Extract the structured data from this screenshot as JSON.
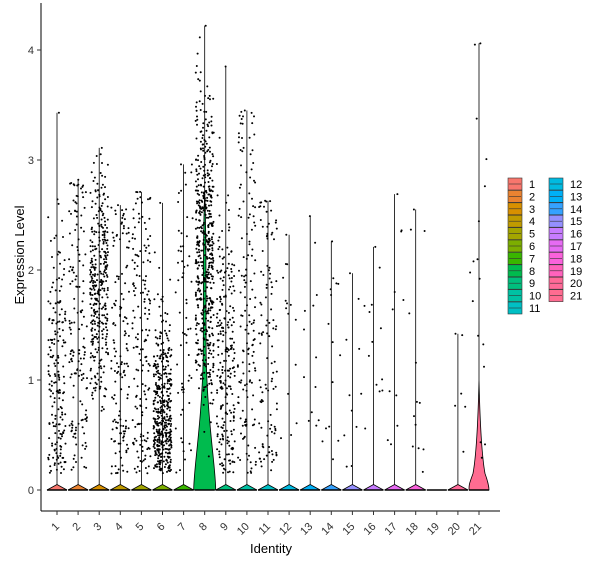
{
  "chart_data": {
    "type": "violin",
    "xlabel": "Identity",
    "ylabel": "Expression Level",
    "ylim": [
      -0.2,
      4.3
    ],
    "yticks": [
      0,
      1,
      2,
      3,
      4
    ],
    "grid": false,
    "legend_position": "right",
    "categories": [
      "1",
      "2",
      "3",
      "4",
      "5",
      "6",
      "7",
      "8",
      "9",
      "10",
      "11",
      "12",
      "13",
      "14",
      "15",
      "16",
      "17",
      "18",
      "19",
      "20",
      "21"
    ],
    "colors": [
      "#F8766D",
      "#EA8331",
      "#D89000",
      "#C09B00",
      "#A3A500",
      "#7CAE00",
      "#39B600",
      "#00BB4E",
      "#00BF7D",
      "#00C1A3",
      "#00BFC4",
      "#00BAE0",
      "#00B0F6",
      "#35A2FF",
      "#9590FF",
      "#C77CFF",
      "#E76BF3",
      "#FA62DB",
      "#FF62BC",
      "#FF6A98",
      "#FF6C91"
    ],
    "series": [
      {
        "name": "1",
        "max": 3.43,
        "nonzero_points": 190
      },
      {
        "name": "2",
        "max": 2.82,
        "nonzero_points": 150
      },
      {
        "name": "3",
        "max": 3.11,
        "nonzero_points": 330
      },
      {
        "name": "4",
        "max": 2.59,
        "nonzero_points": 140
      },
      {
        "name": "5",
        "max": 2.71,
        "nonzero_points": 160
      },
      {
        "name": "6",
        "max": 2.61,
        "nonzero_points": 420
      },
      {
        "name": "7",
        "max": 2.96,
        "nonzero_points": 60
      },
      {
        "name": "8",
        "max": 4.22,
        "nonzero_points": 520
      },
      {
        "name": "9",
        "max": 3.85,
        "nonzero_points": 240
      },
      {
        "name": "10",
        "max": 3.45,
        "nonzero_points": 150
      },
      {
        "name": "11",
        "max": 2.63,
        "nonzero_points": 110
      },
      {
        "name": "12",
        "max": 2.32,
        "nonzero_points": 14
      },
      {
        "name": "13",
        "max": 2.49,
        "nonzero_points": 12
      },
      {
        "name": "14",
        "max": 2.26,
        "nonzero_points": 14
      },
      {
        "name": "15",
        "max": 1.97,
        "nonzero_points": 10
      },
      {
        "name": "16",
        "max": 2.21,
        "nonzero_points": 12
      },
      {
        "name": "17",
        "max": 2.69,
        "nonzero_points": 10
      },
      {
        "name": "18",
        "max": 2.55,
        "nonzero_points": 12
      },
      {
        "name": "19",
        "max": 0.0,
        "nonzero_points": 0
      },
      {
        "name": "20",
        "max": 1.42,
        "nonzero_points": 5
      },
      {
        "name": "21",
        "max": 4.06,
        "nonzero_points": 16
      }
    ]
  }
}
